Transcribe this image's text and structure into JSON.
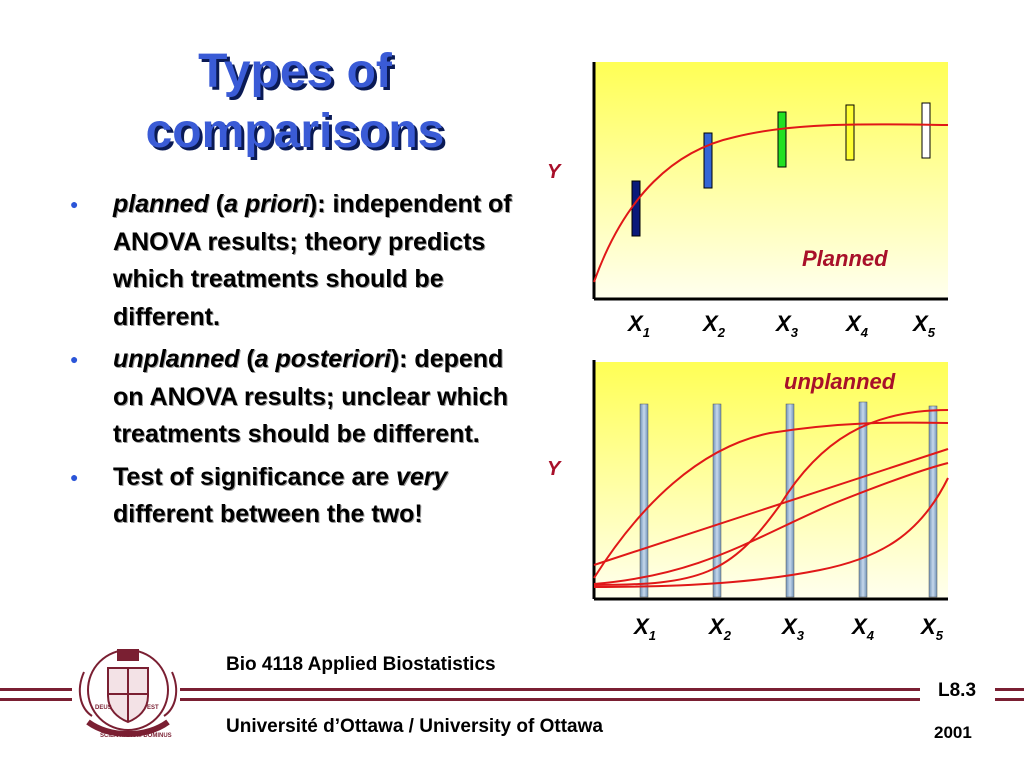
{
  "title": {
    "line1": "Types of",
    "line2": "comparisons"
  },
  "bullets": [
    {
      "parts": [
        "planned",
        " (",
        "a priori",
        "):",
        " independent of ANOVA results; theory predicts which treatments should be different."
      ]
    },
    {
      "parts": [
        "unplanned",
        " (",
        "a posteriori",
        "):",
        " depend on ANOVA results; unclear which treatments should be different."
      ]
    },
    {
      "parts": [
        "Test of significance are ",
        "very",
        " different between the two!"
      ]
    }
  ],
  "chart_data": [
    {
      "type": "bar",
      "label": "Planned",
      "ylabel": "Y",
      "categories": [
        "X1",
        "X2",
        "X3",
        "X4",
        "X5"
      ],
      "bar_colors": [
        "#0a1a7a",
        "#3466d6",
        "#22e022",
        "#ffff33",
        "#ffffff"
      ],
      "curve_color": "#e01818",
      "background": "#ffff66"
    },
    {
      "type": "bar",
      "label": "unplanned",
      "ylabel": "Y",
      "categories": [
        "X1",
        "X2",
        "X3",
        "X4",
        "X5"
      ],
      "bar_color": "#8aa8c8",
      "curve_count": 5,
      "curve_color": "#e01818",
      "background": "#ffff66"
    }
  ],
  "footer": {
    "course": "Bio 4118 Applied Biostatistics",
    "university": "Université d’Ottawa / University of Ottawa",
    "lecture": "L8.3",
    "year": "2001",
    "crest_mottos": [
      "DEUS",
      "SCIENTIARUM DOMINUS",
      "EST"
    ]
  },
  "colors": {
    "title": "#3a5bd6",
    "bullet_dot": "#2b55d8",
    "rule": "#7a1f32",
    "curve": "#e01818",
    "chart_bg": "#ffff66"
  }
}
